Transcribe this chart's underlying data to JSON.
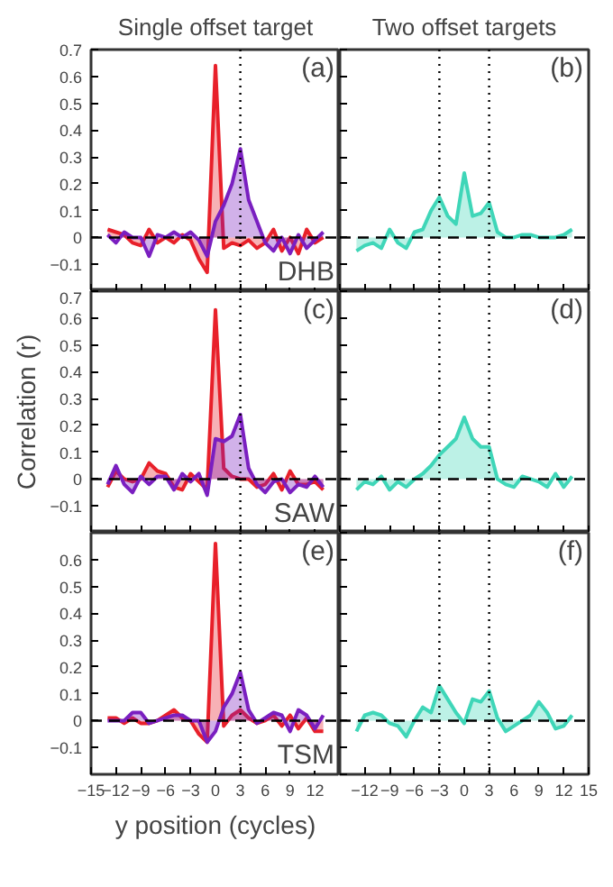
{
  "chart_data": [
    {
      "type": "area",
      "title": "Single offset target",
      "x": [
        -13,
        -12,
        -11,
        -10,
        -9,
        -8,
        -7,
        -6,
        -5,
        -4,
        -3,
        -2,
        -1,
        0,
        1,
        2,
        3,
        4,
        5,
        6,
        7,
        8,
        9,
        10,
        11,
        12,
        13
      ],
      "xlim": [
        -15,
        15
      ],
      "ylim": [
        -0.2,
        0.7
      ],
      "xticks": [
        -15,
        -12,
        -9,
        -6,
        -3,
        0,
        3,
        6,
        9,
        12
      ],
      "yticks": [
        -0.1,
        0,
        0.1,
        0.2,
        0.3,
        0.4,
        0.5,
        0.6,
        0.7
      ],
      "tick_labels": "y",
      "grid": false,
      "annotations": [
        "(a)",
        "DHB"
      ],
      "ref_lines": [
        {
          "axis": "y",
          "value": 0,
          "line_style": "dashed",
          "color": "#000000"
        },
        {
          "axis": "x",
          "value": 3,
          "line_style": "dotted",
          "color": "#000000"
        }
      ],
      "series": [
        {
          "color": "#e8202a",
          "values": [
            0.03,
            0.02,
            0.01,
            -0.02,
            -0.03,
            0.03,
            -0.02,
            0.0,
            -0.02,
            0.01,
            -0.01,
            -0.08,
            -0.13,
            0.64,
            -0.04,
            -0.02,
            -0.03,
            -0.01,
            -0.04,
            -0.02,
            0.03,
            -0.05,
            0.0,
            -0.06,
            0.03,
            -0.02,
            0.0
          ]
        },
        {
          "color": "#7a1fc0",
          "values": [
            0.01,
            -0.02,
            0.02,
            0.0,
            0.0,
            -0.07,
            0.01,
            0.0,
            0.02,
            0.0,
            0.02,
            -0.01,
            -0.07,
            0.06,
            0.12,
            0.2,
            0.33,
            0.14,
            0.06,
            -0.02,
            -0.05,
            0.0,
            -0.06,
            0.01,
            -0.04,
            -0.01,
            0.02
          ]
        }
      ]
    },
    {
      "type": "area",
      "title": "Two offset targets",
      "x": [
        -13,
        -12,
        -11,
        -10,
        -9,
        -8,
        -7,
        -6,
        -5,
        -4,
        -3,
        -2,
        -1,
        0,
        1,
        2,
        3,
        4,
        5,
        6,
        7,
        8,
        9,
        10,
        11,
        12,
        13
      ],
      "xlim": [
        -15,
        15
      ],
      "ylim": [
        -0.2,
        0.7
      ],
      "xticks": [
        -15,
        -12,
        -9,
        -6,
        -3,
        0,
        3,
        6,
        9,
        12,
        15
      ],
      "yticks": [
        -0.2,
        -0.1,
        0,
        0.1,
        0.2,
        0.3,
        0.4,
        0.5,
        0.6,
        0.7
      ],
      "tick_labels": false,
      "grid": false,
      "annotations": [
        "(b)"
      ],
      "ref_lines": [
        {
          "axis": "y",
          "value": 0,
          "line_style": "dashed",
          "color": "#000000"
        },
        {
          "axis": "x",
          "value": -3,
          "line_style": "dotted",
          "color": "#000000"
        },
        {
          "axis": "x",
          "value": 3,
          "line_style": "dotted",
          "color": "#000000"
        }
      ],
      "series": [
        {
          "color": "#3fd6b8",
          "values": [
            -0.05,
            -0.03,
            -0.02,
            -0.04,
            0.03,
            -0.02,
            -0.04,
            0.02,
            0.03,
            0.1,
            0.15,
            0.08,
            0.05,
            0.24,
            0.08,
            0.09,
            0.13,
            0.02,
            0.0,
            0.0,
            0.01,
            0.01,
            0.0,
            0.0,
            0.0,
            0.01,
            0.03
          ]
        }
      ]
    },
    {
      "type": "area",
      "ylabel": "Correlation (r)",
      "x": [
        -13,
        -12,
        -11,
        -10,
        -9,
        -8,
        -7,
        -6,
        -5,
        -4,
        -3,
        -2,
        -1,
        0,
        1,
        2,
        3,
        4,
        5,
        6,
        7,
        8,
        9,
        10,
        11,
        12,
        13
      ],
      "xlim": [
        -15,
        15
      ],
      "ylim": [
        -0.2,
        0.7
      ],
      "xticks": [
        -15,
        -12,
        -9,
        -6,
        -3,
        0,
        3,
        6,
        9,
        12,
        15
      ],
      "yticks": [
        -0.1,
        0,
        0.1,
        0.2,
        0.3,
        0.4,
        0.5,
        0.6,
        0.7
      ],
      "tick_labels": "y",
      "grid": false,
      "annotations": [
        "(c)",
        "SAW"
      ],
      "ref_lines": [
        {
          "axis": "y",
          "value": 0,
          "line_style": "dashed",
          "color": "#000000"
        },
        {
          "axis": "x",
          "value": 3,
          "line_style": "dotted",
          "color": "#000000"
        }
      ],
      "series": [
        {
          "color": "#e8202a",
          "values": [
            -0.03,
            0.03,
            0.0,
            -0.01,
            0.0,
            0.06,
            0.03,
            0.02,
            -0.03,
            -0.04,
            0.02,
            -0.01,
            -0.04,
            0.63,
            0.04,
            0.01,
            0.0,
            0.0,
            -0.03,
            -0.02,
            0.02,
            -0.04,
            0.03,
            -0.02,
            -0.02,
            -0.01,
            -0.04
          ]
        },
        {
          "color": "#7a1fc0",
          "values": [
            -0.02,
            0.05,
            -0.02,
            -0.05,
            0.01,
            -0.02,
            0.01,
            0.01,
            -0.04,
            0.02,
            -0.01,
            0.02,
            -0.06,
            0.15,
            0.14,
            0.16,
            0.24,
            0.04,
            -0.02,
            -0.05,
            -0.01,
            0.0,
            -0.05,
            -0.02,
            -0.03,
            0.01,
            -0.03
          ]
        }
      ]
    },
    {
      "type": "area",
      "x": [
        -13,
        -12,
        -11,
        -10,
        -9,
        -8,
        -7,
        -6,
        -5,
        -4,
        -3,
        -2,
        -1,
        0,
        1,
        2,
        3,
        4,
        5,
        6,
        7,
        8,
        9,
        10,
        11,
        12,
        13
      ],
      "xlim": [
        -15,
        15
      ],
      "ylim": [
        -0.2,
        0.7
      ],
      "xticks": [
        -15,
        -12,
        -9,
        -6,
        -3,
        0,
        3,
        6,
        9,
        12,
        15
      ],
      "yticks": [
        -0.2,
        -0.1,
        0,
        0.1,
        0.2,
        0.3,
        0.4,
        0.5,
        0.6,
        0.7
      ],
      "tick_labels": false,
      "grid": false,
      "annotations": [
        "(d)"
      ],
      "ref_lines": [
        {
          "axis": "y",
          "value": 0,
          "line_style": "dashed",
          "color": "#000000"
        },
        {
          "axis": "x",
          "value": -3,
          "line_style": "dotted",
          "color": "#000000"
        },
        {
          "axis": "x",
          "value": 3,
          "line_style": "dotted",
          "color": "#000000"
        }
      ],
      "series": [
        {
          "color": "#3fd6b8",
          "values": [
            -0.04,
            -0.01,
            -0.02,
            0.01,
            -0.04,
            -0.01,
            -0.03,
            0.0,
            0.02,
            0.05,
            0.09,
            0.12,
            0.15,
            0.23,
            0.15,
            0.12,
            0.12,
            0.0,
            -0.02,
            -0.03,
            0.01,
            0.0,
            -0.01,
            -0.03,
            0.02,
            -0.03,
            0.01
          ]
        }
      ]
    },
    {
      "type": "area",
      "xlabel": "y position (cycles)",
      "x": [
        -13,
        -12,
        -11,
        -10,
        -9,
        -8,
        -7,
        -6,
        -5,
        -4,
        -3,
        -2,
        -1,
        0,
        1,
        2,
        3,
        4,
        5,
        6,
        7,
        8,
        9,
        10,
        11,
        12,
        13
      ],
      "xlim": [
        -15,
        15
      ],
      "ylim": [
        -0.2,
        0.7
      ],
      "xticks": [
        -15,
        -12,
        -9,
        -6,
        -3,
        0,
        3,
        6,
        9,
        12
      ],
      "yticks": [
        -0.1,
        0,
        0.1,
        0.2,
        0.3,
        0.4,
        0.5,
        0.6
      ],
      "grid": false,
      "annotations": [
        "(e)",
        "TSM"
      ],
      "ref_lines": [
        {
          "axis": "y",
          "value": 0,
          "line_style": "dashed",
          "color": "#000000"
        },
        {
          "axis": "x",
          "value": 3,
          "line_style": "dotted",
          "color": "#000000"
        }
      ],
      "series": [
        {
          "color": "#e8202a",
          "values": [
            0.01,
            0.01,
            -0.01,
            0.01,
            -0.01,
            -0.01,
            0.0,
            0.02,
            0.04,
            0.01,
            0.0,
            -0.05,
            -0.08,
            0.66,
            -0.02,
            0.02,
            0.04,
            0.01,
            -0.01,
            0.0,
            0.02,
            -0.02,
            0.02,
            -0.03,
            0.01,
            -0.04,
            -0.04
          ]
        },
        {
          "color": "#7a1fc0",
          "values": [
            0.0,
            0.0,
            0.0,
            0.03,
            0.03,
            -0.01,
            0.0,
            0.01,
            0.02,
            0.02,
            0.0,
            0.0,
            -0.08,
            -0.04,
            0.05,
            0.1,
            0.18,
            0.04,
            -0.01,
            0.01,
            0.03,
            0.02,
            -0.04,
            0.04,
            0.02,
            -0.03,
            0.02
          ]
        }
      ]
    },
    {
      "type": "area",
      "x": [
        -13,
        -12,
        -11,
        -10,
        -9,
        -8,
        -7,
        -6,
        -5,
        -4,
        -3,
        -2,
        -1,
        0,
        1,
        2,
        3,
        4,
        5,
        6,
        7,
        8,
        9,
        10,
        11,
        12,
        13
      ],
      "xlim": [
        -15,
        15
      ],
      "ylim": [
        -0.2,
        0.7
      ],
      "xticks": [
        -12,
        -9,
        -6,
        -3,
        0,
        3,
        6,
        9,
        12,
        15
      ],
      "yticks": [
        -0.2,
        -0.1,
        0,
        0.1,
        0.2,
        0.3,
        0.4,
        0.5,
        0.6,
        0.7
      ],
      "tick_labels": "x",
      "grid": false,
      "annotations": [
        "(f)"
      ],
      "ref_lines": [
        {
          "axis": "y",
          "value": 0,
          "line_style": "dashed",
          "color": "#000000"
        },
        {
          "axis": "x",
          "value": -3,
          "line_style": "dotted",
          "color": "#000000"
        },
        {
          "axis": "x",
          "value": 3,
          "line_style": "dotted",
          "color": "#000000"
        }
      ],
      "series": [
        {
          "color": "#3fd6b8",
          "values": [
            -0.04,
            0.02,
            0.03,
            0.02,
            -0.01,
            -0.02,
            -0.06,
            0.0,
            0.05,
            0.03,
            0.13,
            0.08,
            0.03,
            -0.01,
            0.08,
            0.07,
            0.11,
            0.01,
            -0.04,
            -0.02,
            0.0,
            0.02,
            0.07,
            0.03,
            -0.03,
            -0.02,
            0.02
          ]
        }
      ]
    }
  ]
}
